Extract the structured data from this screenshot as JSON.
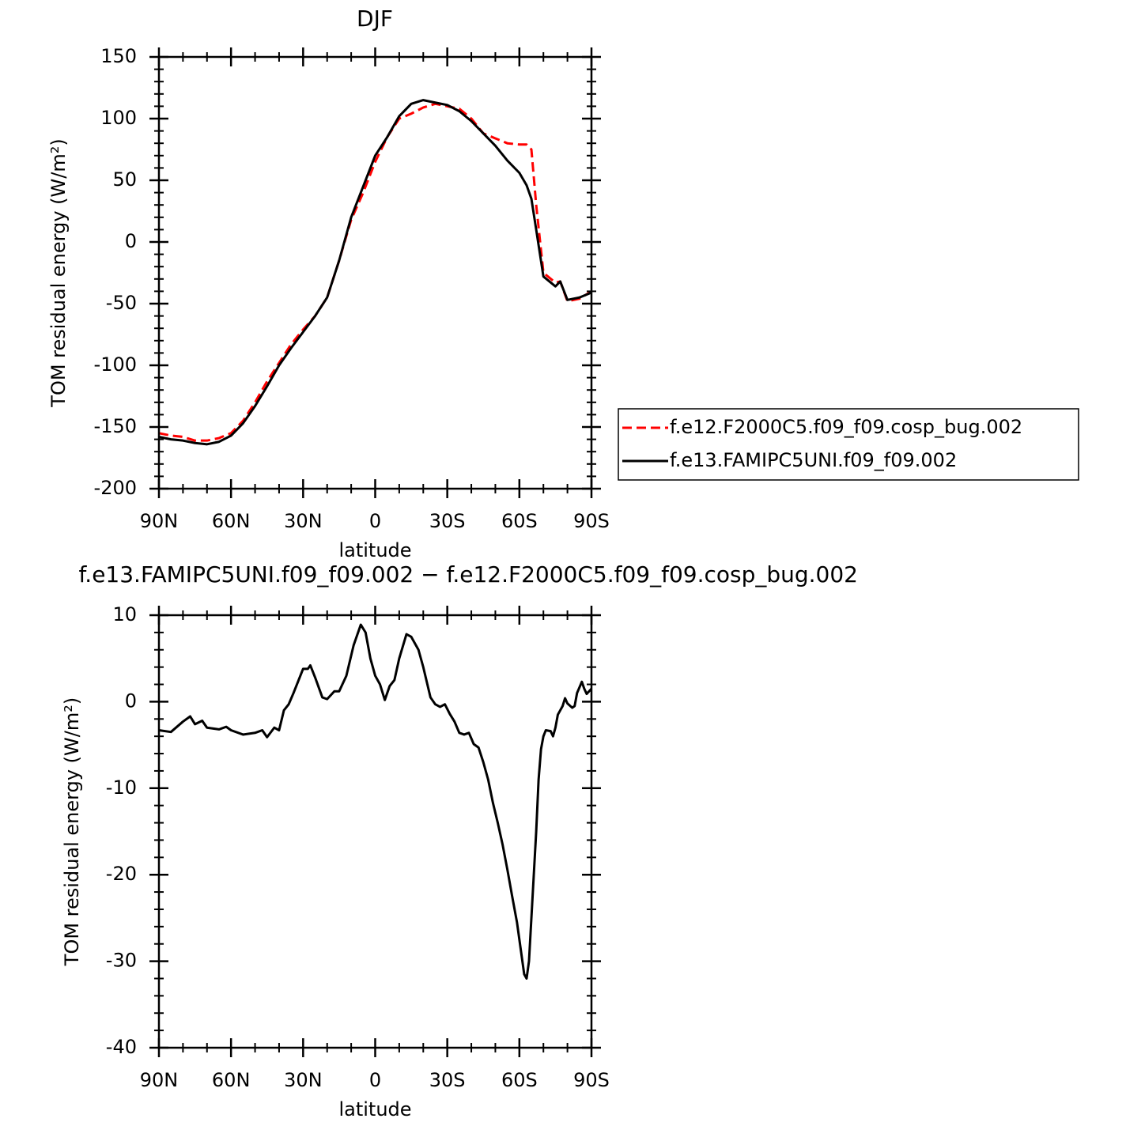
{
  "chart_data": [
    {
      "type": "line",
      "title": "DJF",
      "x_label": "latitude",
      "y_label": "TOM residual energy (W/m²)",
      "x": [
        90,
        85,
        80,
        75,
        70,
        65,
        60,
        55,
        50,
        45,
        40,
        35,
        30,
        25,
        20,
        15,
        10,
        5,
        0,
        -5,
        -10,
        -15,
        -20,
        -25,
        -30,
        -35,
        -40,
        -45,
        -50,
        -55,
        -60,
        -63,
        -65,
        -67,
        -70,
        -75,
        -77,
        -80,
        -85,
        -90
      ],
      "series": [
        {
          "name": "f.e12.F2000C5.f09_f09.cosp_bug.002",
          "color": "#ff0000",
          "dash": "dashed",
          "values": [
            -155,
            -157,
            -158,
            -161,
            -161,
            -159,
            -155,
            -145,
            -130,
            -113,
            -98,
            -83,
            -71,
            -60,
            -45,
            -15,
            18,
            40,
            65,
            85,
            100,
            104,
            109,
            112,
            110,
            108,
            100,
            88,
            84,
            80,
            79,
            79,
            75,
            30,
            -25,
            -33,
            -32,
            -48,
            -46,
            -40
          ]
        },
        {
          "name": "f.e13.FAMIPC5UNI.f09_f09.002",
          "color": "#000000",
          "values": [
            -158,
            -160,
            -161,
            -163,
            -164,
            -162,
            -157,
            -147,
            -133,
            -117,
            -100,
            -86,
            -73,
            -60,
            -45,
            -15,
            20,
            45,
            70,
            85,
            102,
            112,
            115,
            113,
            111,
            106,
            98,
            88,
            78,
            66,
            56,
            46,
            35,
            10,
            -28,
            -36,
            -32,
            -47,
            -45,
            -41
          ]
        }
      ],
      "xlim": [
        90,
        -90
      ],
      "xticks": [
        {
          "value": 90,
          "label": "90N"
        },
        {
          "value": 60,
          "label": "60N"
        },
        {
          "value": 30,
          "label": "30N"
        },
        0,
        {
          "value": -30,
          "label": "30S"
        },
        {
          "value": -60,
          "label": "60S"
        },
        {
          "value": -90,
          "label": "90S"
        }
      ],
      "xminorticks": [
        80,
        70,
        50,
        40,
        20,
        10,
        -10,
        -20,
        -40,
        -50,
        -70,
        -80
      ],
      "ylim": [
        -200,
        150
      ],
      "yticks": [
        -200,
        -150,
        -100,
        -50,
        0,
        50,
        100,
        150
      ],
      "yminorticks": [
        -190,
        -180,
        -170,
        -160,
        -140,
        -130,
        -120,
        -110,
        -90,
        -80,
        -70,
        -60,
        -40,
        -30,
        -20,
        -10,
        10,
        20,
        30,
        40,
        60,
        70,
        80,
        90,
        110,
        120,
        130,
        140
      ],
      "legend": "right"
    },
    {
      "type": "line",
      "title": "f.e13.FAMIPC5UNI.f09_f09.002 − f.e12.F2000C5.f09_f09.cosp_bug.002",
      "x_label": "latitude",
      "y_label": "TOM residual energy (W/m²)",
      "x": [
        90,
        85,
        80,
        77,
        75,
        72,
        70,
        65,
        62,
        60,
        55,
        50,
        47,
        45,
        42,
        40,
        38,
        36,
        34,
        30,
        28,
        27,
        25,
        22,
        20,
        17,
        15,
        12,
        9,
        6,
        4,
        2,
        0,
        -2,
        -4,
        -6,
        -8,
        -10,
        -13,
        -15,
        -18,
        -20,
        -23,
        -25,
        -27,
        -29,
        -31,
        -33,
        -35,
        -37,
        -39,
        -41,
        -43,
        -45,
        -47,
        -49,
        -51,
        -53,
        -55,
        -57,
        -59,
        -61,
        -62,
        -63,
        -64,
        -65,
        -66,
        -67,
        -68,
        -69,
        -70,
        -71,
        -73,
        -74,
        -75,
        -76,
        -78,
        -79,
        -80,
        -82,
        -83,
        -84,
        -86,
        -87,
        -88,
        -90
      ],
      "series": [
        {
          "color": "#000000",
          "values": [
            -3.3,
            -3.5,
            -2.3,
            -1.7,
            -2.6,
            -2.2,
            -3,
            -3.2,
            -2.9,
            -3.3,
            -3.8,
            -3.6,
            -3.3,
            -4.1,
            -3,
            -3.3,
            -1,
            -0.3,
            1,
            3.8,
            3.8,
            4.2,
            2.8,
            0.5,
            0.3,
            1.2,
            1.2,
            3,
            6.5,
            8.9,
            8,
            5,
            3,
            2,
            0.2,
            1.8,
            2.5,
            5,
            7.8,
            7.5,
            6,
            4,
            0.5,
            -0.3,
            -0.6,
            -0.3,
            -1.4,
            -2.3,
            -3.6,
            -3.8,
            -3.6,
            -4.9,
            -5.3,
            -7,
            -9,
            -11.7,
            -14,
            -16.5,
            -19.4,
            -22.5,
            -25.5,
            -29.5,
            -31.5,
            -32,
            -30,
            -25,
            -20,
            -15,
            -9,
            -5.5,
            -4,
            -3.3,
            -3.4,
            -4,
            -3,
            -1.5,
            -0.5,
            0.4,
            -0.2,
            -0.7,
            -0.5,
            1,
            2.3,
            1.5,
            0.9,
            1.5
          ]
        }
      ],
      "xlim": [
        90,
        -90
      ],
      "xticks": [
        {
          "value": 90,
          "label": "90N"
        },
        {
          "value": 60,
          "label": "60N"
        },
        {
          "value": 30,
          "label": "30N"
        },
        0,
        {
          "value": -30,
          "label": "30S"
        },
        {
          "value": -60,
          "label": "60S"
        },
        {
          "value": -90,
          "label": "90S"
        }
      ],
      "xminorticks": [
        80,
        70,
        50,
        40,
        20,
        10,
        -10,
        -20,
        -40,
        -50,
        -70,
        -80
      ],
      "ylim": [
        -40,
        10
      ],
      "yticks": [
        -40,
        -30,
        -20,
        -10,
        0,
        10
      ],
      "yminorticks": [
        -38,
        -36,
        -34,
        -32,
        -28,
        -26,
        -24,
        -22,
        -18,
        -16,
        -14,
        -12,
        -8,
        -6,
        -4,
        -2,
        2,
        4,
        6,
        8
      ]
    }
  ]
}
